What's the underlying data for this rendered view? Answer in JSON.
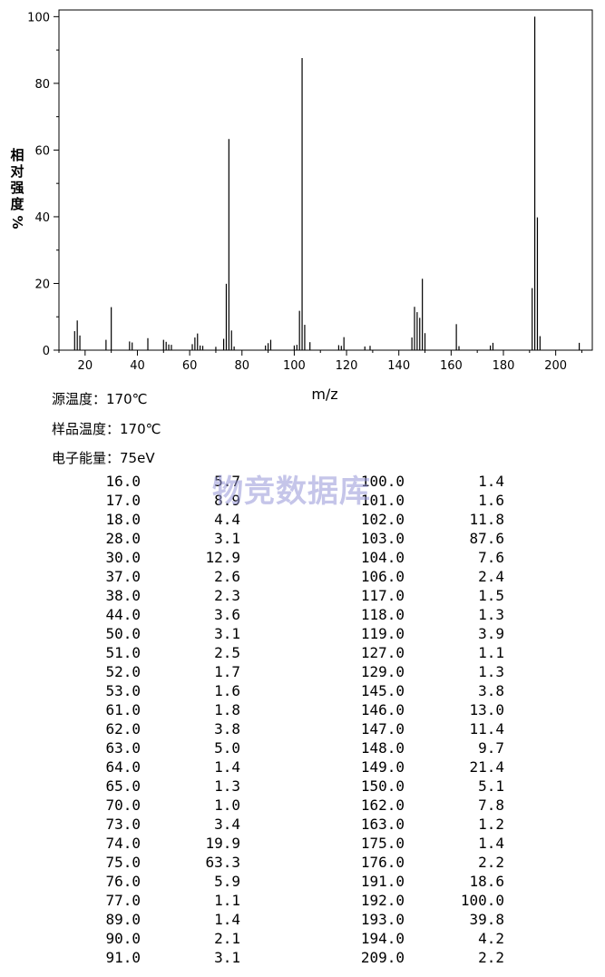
{
  "chart_data": {
    "type": "bar",
    "xlabel": "m/z",
    "ylabel": "相对强度%",
    "xlim": [
      10,
      214
    ],
    "ylim": [
      0,
      102
    ],
    "xticks": [
      20,
      40,
      60,
      80,
      100,
      120,
      140,
      160,
      180,
      200
    ],
    "yticks": [
      0,
      20,
      40,
      60,
      80,
      100
    ],
    "grid": false,
    "x": [
      16,
      17,
      18,
      28,
      30,
      37,
      38,
      44,
      50,
      51,
      52,
      53,
      61,
      62,
      63,
      64,
      65,
      70,
      73,
      74,
      75,
      76,
      77,
      89,
      90,
      91,
      100,
      101,
      102,
      103,
      104,
      106,
      117,
      118,
      119,
      127,
      129,
      145,
      146,
      147,
      148,
      149,
      150,
      162,
      163,
      175,
      176,
      191,
      192,
      193,
      194,
      209
    ],
    "values": [
      5.7,
      8.9,
      4.4,
      3.1,
      12.9,
      2.6,
      2.3,
      3.6,
      3.1,
      2.5,
      1.7,
      1.6,
      1.8,
      3.8,
      5.0,
      1.4,
      1.3,
      1.0,
      3.4,
      19.9,
      63.3,
      5.9,
      1.1,
      1.4,
      2.1,
      3.1,
      1.4,
      1.6,
      11.8,
      87.6,
      7.6,
      2.4,
      1.5,
      1.3,
      3.9,
      1.1,
      1.3,
      3.8,
      13.0,
      11.4,
      9.7,
      21.4,
      5.1,
      7.8,
      1.2,
      1.4,
      2.2,
      18.6,
      100.0,
      39.8,
      4.2,
      2.2
    ]
  },
  "conditions": [
    {
      "label": "源温度：",
      "value": "170℃"
    },
    {
      "label": "样品温度：",
      "value": "170℃"
    },
    {
      "label": "电子能量：",
      "value": "75eV"
    }
  ],
  "watermark": "物竞数据库",
  "peaks_left": [
    [
      "16.0",
      "5.7"
    ],
    [
      "17.0",
      "8.9"
    ],
    [
      "18.0",
      "4.4"
    ],
    [
      "28.0",
      "3.1"
    ],
    [
      "30.0",
      "12.9"
    ],
    [
      "37.0",
      "2.6"
    ],
    [
      "38.0",
      "2.3"
    ],
    [
      "44.0",
      "3.6"
    ],
    [
      "50.0",
      "3.1"
    ],
    [
      "51.0",
      "2.5"
    ],
    [
      "52.0",
      "1.7"
    ],
    [
      "53.0",
      "1.6"
    ],
    [
      "61.0",
      "1.8"
    ],
    [
      "62.0",
      "3.8"
    ],
    [
      "63.0",
      "5.0"
    ],
    [
      "64.0",
      "1.4"
    ],
    [
      "65.0",
      "1.3"
    ],
    [
      "70.0",
      "1.0"
    ],
    [
      "73.0",
      "3.4"
    ],
    [
      "74.0",
      "19.9"
    ],
    [
      "75.0",
      "63.3"
    ],
    [
      "76.0",
      "5.9"
    ],
    [
      "77.0",
      "1.1"
    ],
    [
      "89.0",
      "1.4"
    ],
    [
      "90.0",
      "2.1"
    ],
    [
      "91.0",
      "3.1"
    ]
  ],
  "peaks_right": [
    [
      "100.0",
      "1.4"
    ],
    [
      "101.0",
      "1.6"
    ],
    [
      "102.0",
      "11.8"
    ],
    [
      "103.0",
      "87.6"
    ],
    [
      "104.0",
      "7.6"
    ],
    [
      "106.0",
      "2.4"
    ],
    [
      "117.0",
      "1.5"
    ],
    [
      "118.0",
      "1.3"
    ],
    [
      "119.0",
      "3.9"
    ],
    [
      "127.0",
      "1.1"
    ],
    [
      "129.0",
      "1.3"
    ],
    [
      "145.0",
      "3.8"
    ],
    [
      "146.0",
      "13.0"
    ],
    [
      "147.0",
      "11.4"
    ],
    [
      "148.0",
      "9.7"
    ],
    [
      "149.0",
      "21.4"
    ],
    [
      "150.0",
      "5.1"
    ],
    [
      "162.0",
      "7.8"
    ],
    [
      "163.0",
      "1.2"
    ],
    [
      "175.0",
      "1.4"
    ],
    [
      "176.0",
      "2.2"
    ],
    [
      "191.0",
      "18.6"
    ],
    [
      "192.0",
      "100.0"
    ],
    [
      "193.0",
      "39.8"
    ],
    [
      "194.0",
      "4.2"
    ],
    [
      "209.0",
      "2.2"
    ]
  ]
}
